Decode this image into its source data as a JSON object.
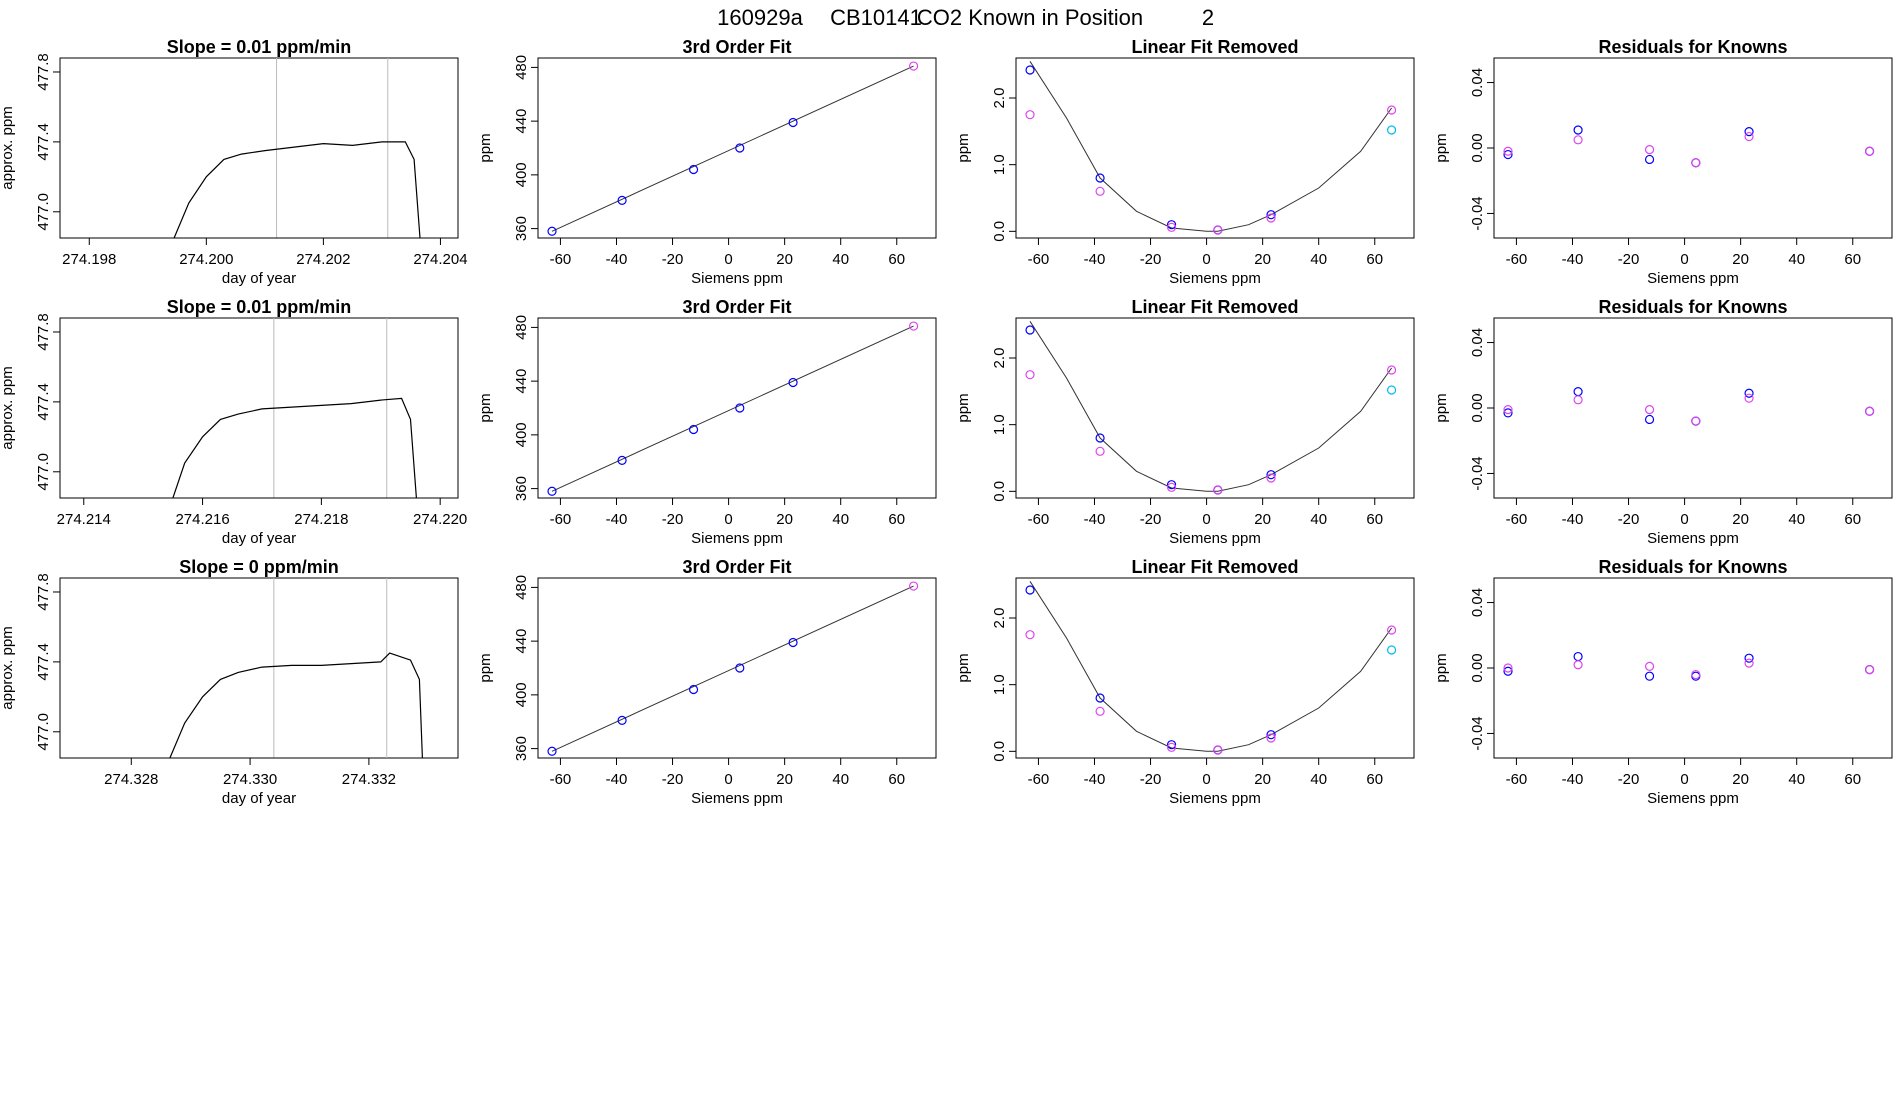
{
  "header": {
    "run": "160929a",
    "tank": "CB10141",
    "desc": "CO2 Known in Position",
    "position": "2"
  },
  "labels": {
    "day_of_year": "day of year",
    "approx_ppm": "approx. ppm",
    "siemens": "Siemens ppm",
    "ppm": "ppm"
  },
  "colors": {
    "line": "#000000",
    "blue": "#0000ff",
    "magenta": "#dd44ee",
    "cyan": "#00bbee",
    "purple": "#7a3ed6",
    "vline": "#bbbbbb"
  },
  "chart_data": [
    {
      "type": "line",
      "title": "Slope =  0.01  ppm/min",
      "xlabel": "day of year",
      "ylabel": "approx. ppm",
      "xlim": [
        274.1975,
        274.2043
      ],
      "ylim": [
        476.85,
        477.88
      ],
      "xticks": [
        "274.198",
        "274.200",
        "274.202",
        "274.204"
      ],
      "xtick_values": [
        274.198,
        274.2,
        274.202,
        274.204
      ],
      "yticks": [
        "477.0",
        "477.4",
        "477.8"
      ],
      "ytick_values": [
        477.0,
        477.4,
        477.8
      ],
      "vlines": [
        274.2012,
        274.2031
      ],
      "x": [
        274.19945,
        274.1997,
        274.2,
        274.2003,
        274.2006,
        274.201,
        274.2015,
        274.202,
        274.2025,
        274.203,
        274.2034,
        274.20355,
        274.20365
      ],
      "y": [
        476.85,
        477.05,
        477.2,
        477.3,
        477.33,
        477.35,
        477.37,
        477.39,
        477.38,
        477.4,
        477.4,
        477.3,
        476.85
      ]
    },
    {
      "type": "scatter",
      "title": "3rd Order Fit",
      "xlabel": "Siemens ppm",
      "ylabel": "ppm",
      "xlim": [
        -68,
        74
      ],
      "ylim": [
        353,
        487
      ],
      "xticks": [
        "-60",
        "-40",
        "-20",
        "0",
        "20",
        "40",
        "60"
      ],
      "xtick_values": [
        -60,
        -40,
        -20,
        0,
        20,
        40,
        60
      ],
      "yticks": [
        "360",
        "400",
        "440",
        "480"
      ],
      "ytick_values": [
        360,
        400,
        440,
        480
      ],
      "fit_x": [
        -63,
        66
      ],
      "fit_y": [
        358,
        481
      ],
      "x": [
        -63,
        -38,
        -12.5,
        4,
        23,
        66
      ],
      "y": [
        358,
        381,
        404,
        420,
        439,
        481
      ],
      "colors": [
        "blue",
        "blue",
        "blue",
        "blue",
        "blue",
        "magenta"
      ]
    },
    {
      "type": "scatter",
      "title": "Linear Fit Removed",
      "xlabel": "Siemens ppm",
      "ylabel": "ppm",
      "xlim": [
        -68,
        74
      ],
      "ylim": [
        -0.1,
        2.6
      ],
      "xticks": [
        "-60",
        "-40",
        "-20",
        "0",
        "20",
        "40",
        "60"
      ],
      "xtick_values": [
        -60,
        -40,
        -20,
        0,
        20,
        40,
        60
      ],
      "yticks": [
        "0.0",
        "1.0",
        "2.0"
      ],
      "ytick_values": [
        0.0,
        1.0,
        2.0
      ],
      "curve": [
        [
          -63,
          2.55
        ],
        [
          -50,
          1.7
        ],
        [
          -38,
          0.8
        ],
        [
          -25,
          0.3
        ],
        [
          -12.5,
          0.05
        ],
        [
          0,
          0.0
        ],
        [
          4,
          0.0
        ],
        [
          15,
          0.1
        ],
        [
          23,
          0.25
        ],
        [
          40,
          0.65
        ],
        [
          55,
          1.2
        ],
        [
          66,
          1.85
        ]
      ],
      "x": [
        -63,
        -38,
        -12.5,
        4,
        23,
        -63,
        -38,
        -12.5,
        4,
        23,
        66,
        66
      ],
      "y": [
        2.42,
        0.8,
        0.1,
        0.02,
        0.25,
        1.75,
        0.6,
        0.06,
        0.02,
        0.2,
        1.82,
        1.52
      ],
      "colors": [
        "blue",
        "blue",
        "blue",
        "blue",
        "blue",
        "magenta",
        "magenta",
        "magenta",
        "magenta",
        "magenta",
        "magenta",
        "cyan"
      ]
    },
    {
      "type": "scatter",
      "title": "Residuals for Knowns",
      "xlabel": "Siemens ppm",
      "ylabel": "ppm",
      "xlim": [
        -68,
        74
      ],
      "ylim": [
        -0.055,
        0.055
      ],
      "xticks": [
        "-60",
        "-40",
        "-20",
        "0",
        "20",
        "40",
        "60"
      ],
      "xtick_values": [
        -60,
        -40,
        -20,
        0,
        20,
        40,
        60
      ],
      "yticks": [
        "-0.04",
        "0.00",
        "0.04"
      ],
      "ytick_values": [
        -0.04,
        0.0,
        0.04
      ],
      "x": [
        -63,
        -38,
        -12.5,
        4,
        23,
        66,
        -63,
        -38,
        -12.5,
        4,
        23,
        66
      ],
      "y": [
        -0.004,
        0.011,
        -0.007,
        -0.009,
        0.01,
        -0.002,
        -0.002,
        0.005,
        -0.001,
        -0.009,
        0.007,
        -0.002
      ],
      "colors": [
        "blue",
        "blue",
        "blue",
        "blue",
        "blue",
        "blue",
        "magenta",
        "magenta",
        "magenta",
        "magenta",
        "magenta",
        "magenta"
      ]
    },
    {
      "type": "line",
      "title": "Slope =  0.01  ppm/min",
      "xlabel": "day of year",
      "ylabel": "approx. ppm",
      "xlim": [
        274.2136,
        274.2203
      ],
      "ylim": [
        476.85,
        477.88
      ],
      "xticks": [
        "274.214",
        "274.216",
        "274.218",
        "274.220"
      ],
      "xtick_values": [
        274.214,
        274.216,
        274.218,
        274.22
      ],
      "yticks": [
        "477.0",
        "477.4",
        "477.8"
      ],
      "ytick_values": [
        477.0,
        477.4,
        477.8
      ],
      "vlines": [
        274.2172,
        274.2191
      ],
      "x": [
        274.2155,
        274.2157,
        274.216,
        274.2163,
        274.2166,
        274.217,
        274.2175,
        274.218,
        274.2185,
        274.219,
        274.21935,
        274.2195,
        274.2196
      ],
      "y": [
        476.85,
        477.05,
        477.2,
        477.3,
        477.33,
        477.36,
        477.37,
        477.38,
        477.39,
        477.41,
        477.42,
        477.3,
        476.85
      ]
    },
    {
      "type": "scatter",
      "title": "3rd Order Fit",
      "xlabel": "Siemens ppm",
      "ylabel": "ppm",
      "xlim": [
        -68,
        74
      ],
      "ylim": [
        353,
        487
      ],
      "xticks": [
        "-60",
        "-40",
        "-20",
        "0",
        "20",
        "40",
        "60"
      ],
      "xtick_values": [
        -60,
        -40,
        -20,
        0,
        20,
        40,
        60
      ],
      "yticks": [
        "360",
        "400",
        "440",
        "480"
      ],
      "ytick_values": [
        360,
        400,
        440,
        480
      ],
      "fit_x": [
        -63,
        66
      ],
      "fit_y": [
        358,
        481
      ],
      "x": [
        -63,
        -38,
        -12.5,
        4,
        23,
        66
      ],
      "y": [
        358,
        381,
        404,
        420,
        439,
        481
      ],
      "colors": [
        "blue",
        "blue",
        "blue",
        "blue",
        "blue",
        "magenta"
      ]
    },
    {
      "type": "scatter",
      "title": "Linear Fit Removed",
      "xlabel": "Siemens ppm",
      "ylabel": "ppm",
      "xlim": [
        -68,
        74
      ],
      "ylim": [
        -0.1,
        2.6
      ],
      "xticks": [
        "-60",
        "-40",
        "-20",
        "0",
        "20",
        "40",
        "60"
      ],
      "xtick_values": [
        -60,
        -40,
        -20,
        0,
        20,
        40,
        60
      ],
      "yticks": [
        "0.0",
        "1.0",
        "2.0"
      ],
      "ytick_values": [
        0.0,
        1.0,
        2.0
      ],
      "curve": [
        [
          -63,
          2.55
        ],
        [
          -50,
          1.7
        ],
        [
          -38,
          0.8
        ],
        [
          -25,
          0.3
        ],
        [
          -12.5,
          0.05
        ],
        [
          0,
          0.0
        ],
        [
          4,
          0.0
        ],
        [
          15,
          0.1
        ],
        [
          23,
          0.25
        ],
        [
          40,
          0.65
        ],
        [
          55,
          1.2
        ],
        [
          66,
          1.85
        ]
      ],
      "x": [
        -63,
        -38,
        -12.5,
        4,
        23,
        -63,
        -38,
        -12.5,
        4,
        23,
        66,
        66
      ],
      "y": [
        2.42,
        0.8,
        0.1,
        0.02,
        0.25,
        1.75,
        0.6,
        0.06,
        0.02,
        0.2,
        1.82,
        1.52
      ],
      "colors": [
        "blue",
        "blue",
        "blue",
        "blue",
        "blue",
        "magenta",
        "magenta",
        "magenta",
        "magenta",
        "magenta",
        "magenta",
        "cyan"
      ]
    },
    {
      "type": "scatter",
      "title": "Residuals for Knowns",
      "xlabel": "Siemens ppm",
      "ylabel": "ppm",
      "xlim": [
        -68,
        74
      ],
      "ylim": [
        -0.055,
        0.055
      ],
      "xticks": [
        "-60",
        "-40",
        "-20",
        "0",
        "20",
        "40",
        "60"
      ],
      "xtick_values": [
        -60,
        -40,
        -20,
        0,
        20,
        40,
        60
      ],
      "yticks": [
        "-0.04",
        "0.00",
        "0.04"
      ],
      "ytick_values": [
        -0.04,
        0.0,
        0.04
      ],
      "x": [
        -63,
        -38,
        -12.5,
        4,
        23,
        66,
        -63,
        -38,
        -12.5,
        4,
        23,
        66
      ],
      "y": [
        -0.003,
        0.01,
        -0.007,
        -0.008,
        0.009,
        -0.002,
        -0.001,
        0.005,
        -0.001,
        -0.008,
        0.006,
        -0.002
      ],
      "colors": [
        "blue",
        "blue",
        "blue",
        "blue",
        "blue",
        "blue",
        "magenta",
        "magenta",
        "magenta",
        "magenta",
        "magenta",
        "magenta"
      ]
    },
    {
      "type": "line",
      "title": "Slope =  0  ppm/min",
      "xlabel": "day of year",
      "ylabel": "approx. ppm",
      "xlim": [
        274.3268,
        274.3335
      ],
      "ylim": [
        476.85,
        477.88
      ],
      "xticks": [
        "274.328",
        "274.330",
        "274.332"
      ],
      "xtick_values": [
        274.328,
        274.33,
        274.332
      ],
      "yticks": [
        "477.0",
        "477.4",
        "477.8"
      ],
      "ytick_values": [
        477.0,
        477.4,
        477.8
      ],
      "vlines": [
        274.3304,
        274.3323
      ],
      "x": [
        274.32865,
        274.3289,
        274.3292,
        274.3295,
        274.3298,
        274.3302,
        274.3307,
        274.3312,
        274.3317,
        274.3322,
        274.33235,
        274.3327,
        274.33285,
        274.3329
      ],
      "y": [
        476.85,
        477.05,
        477.2,
        477.3,
        477.34,
        477.37,
        477.38,
        477.38,
        477.39,
        477.4,
        477.45,
        477.41,
        477.3,
        476.85
      ]
    },
    {
      "type": "scatter",
      "title": "3rd Order Fit",
      "xlabel": "Siemens ppm",
      "ylabel": "ppm",
      "xlim": [
        -68,
        74
      ],
      "ylim": [
        353,
        487
      ],
      "xticks": [
        "-60",
        "-40",
        "-20",
        "0",
        "20",
        "40",
        "60"
      ],
      "xtick_values": [
        -60,
        -40,
        -20,
        0,
        20,
        40,
        60
      ],
      "yticks": [
        "360",
        "400",
        "440",
        "480"
      ],
      "ytick_values": [
        360,
        400,
        440,
        480
      ],
      "fit_x": [
        -63,
        66
      ],
      "fit_y": [
        358,
        481
      ],
      "x": [
        -63,
        -38,
        -12.5,
        4,
        23,
        66
      ],
      "y": [
        358,
        381,
        404,
        420,
        439,
        481
      ],
      "colors": [
        "blue",
        "blue",
        "blue",
        "blue",
        "blue",
        "magenta"
      ]
    },
    {
      "type": "scatter",
      "title": "Linear Fit Removed",
      "xlabel": "Siemens ppm",
      "ylabel": "ppm",
      "xlim": [
        -68,
        74
      ],
      "ylim": [
        -0.1,
        2.6
      ],
      "xticks": [
        "-60",
        "-40",
        "-20",
        "0",
        "20",
        "40",
        "60"
      ],
      "xtick_values": [
        -60,
        -40,
        -20,
        0,
        20,
        40,
        60
      ],
      "yticks": [
        "0.0",
        "1.0",
        "2.0"
      ],
      "ytick_values": [
        0.0,
        1.0,
        2.0
      ],
      "curve": [
        [
          -63,
          2.55
        ],
        [
          -50,
          1.7
        ],
        [
          -38,
          0.8
        ],
        [
          -25,
          0.3
        ],
        [
          -12.5,
          0.05
        ],
        [
          0,
          0.0
        ],
        [
          4,
          0.0
        ],
        [
          15,
          0.1
        ],
        [
          23,
          0.25
        ],
        [
          40,
          0.65
        ],
        [
          55,
          1.2
        ],
        [
          66,
          1.85
        ]
      ],
      "x": [
        -63,
        -38,
        -12.5,
        4,
        23,
        -63,
        -38,
        -12.5,
        4,
        23,
        66,
        66
      ],
      "y": [
        2.42,
        0.8,
        0.1,
        0.02,
        0.25,
        1.75,
        0.6,
        0.06,
        0.02,
        0.2,
        1.82,
        1.52
      ],
      "colors": [
        "blue",
        "blue",
        "blue",
        "blue",
        "blue",
        "magenta",
        "magenta",
        "magenta",
        "magenta",
        "magenta",
        "magenta",
        "cyan"
      ]
    },
    {
      "type": "scatter",
      "title": "Residuals for Knowns",
      "xlabel": "Siemens ppm",
      "ylabel": "ppm",
      "xlim": [
        -68,
        74
      ],
      "ylim": [
        -0.055,
        0.055
      ],
      "xticks": [
        "-60",
        "-40",
        "-20",
        "0",
        "20",
        "40",
        "60"
      ],
      "xtick_values": [
        -60,
        -40,
        -20,
        0,
        20,
        40,
        60
      ],
      "yticks": [
        "-0.04",
        "0.00",
        "0.04"
      ],
      "ytick_values": [
        -0.04,
        0.0,
        0.04
      ],
      "x": [
        -63,
        -38,
        -12.5,
        4,
        23,
        66,
        -63,
        -38,
        -12.5,
        4,
        23,
        66
      ],
      "y": [
        -0.002,
        0.007,
        -0.005,
        -0.005,
        0.006,
        -0.001,
        0.0,
        0.002,
        0.001,
        -0.004,
        0.003,
        -0.001
      ],
      "colors": [
        "blue",
        "blue",
        "blue",
        "blue",
        "blue",
        "blue",
        "magenta",
        "magenta",
        "magenta",
        "magenta",
        "magenta",
        "magenta"
      ]
    }
  ]
}
